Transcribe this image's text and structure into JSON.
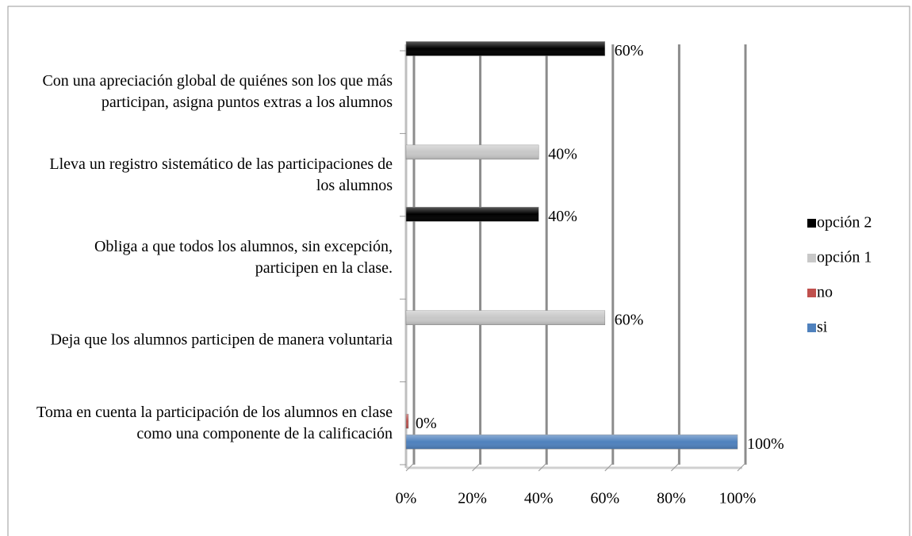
{
  "chart_data": {
    "type": "bar",
    "orientation": "horizontal",
    "categories": [
      "Con una apreciación global de quiénes son los que más participan, asigna puntos extras a los alumnos",
      "Lleva un registro sistemático de las participaciones de los alumnos",
      "Obliga a que todos los alumnos, sin excepción, participen en la clase.",
      "Deja que los alumnos participen de manera voluntaria",
      "Toma en cuenta la participación de los alumnos en clase como una componente de la calificación"
    ],
    "series": [
      {
        "name": "si",
        "color": "#4f81bd",
        "values": [
          null,
          null,
          null,
          null,
          100
        ],
        "value_labels": [
          null,
          null,
          null,
          null,
          "100%"
        ]
      },
      {
        "name": "no",
        "color": "#c0504d",
        "values": [
          null,
          null,
          null,
          null,
          0
        ],
        "value_labels": [
          null,
          null,
          null,
          null,
          "0%"
        ]
      },
      {
        "name": "opción 1",
        "color": "#c8c8c8",
        "values": [
          null,
          40,
          null,
          60,
          null
        ],
        "value_labels": [
          null,
          "40%",
          null,
          "60%",
          null
        ]
      },
      {
        "name": "opción 2",
        "color": "#000000",
        "values": [
          60,
          null,
          40,
          null,
          null
        ],
        "value_labels": [
          "60%",
          null,
          "40%",
          null,
          null
        ]
      }
    ],
    "xlim": [
      0,
      100
    ],
    "xticks": [
      {
        "value": 0,
        "label": "0%"
      },
      {
        "value": 20,
        "label": "20%"
      },
      {
        "value": 40,
        "label": "40%"
      },
      {
        "value": 60,
        "label": "60%"
      },
      {
        "value": 80,
        "label": "80%"
      },
      {
        "value": 100,
        "label": "100%"
      }
    ],
    "grid": true,
    "legend": "right"
  }
}
